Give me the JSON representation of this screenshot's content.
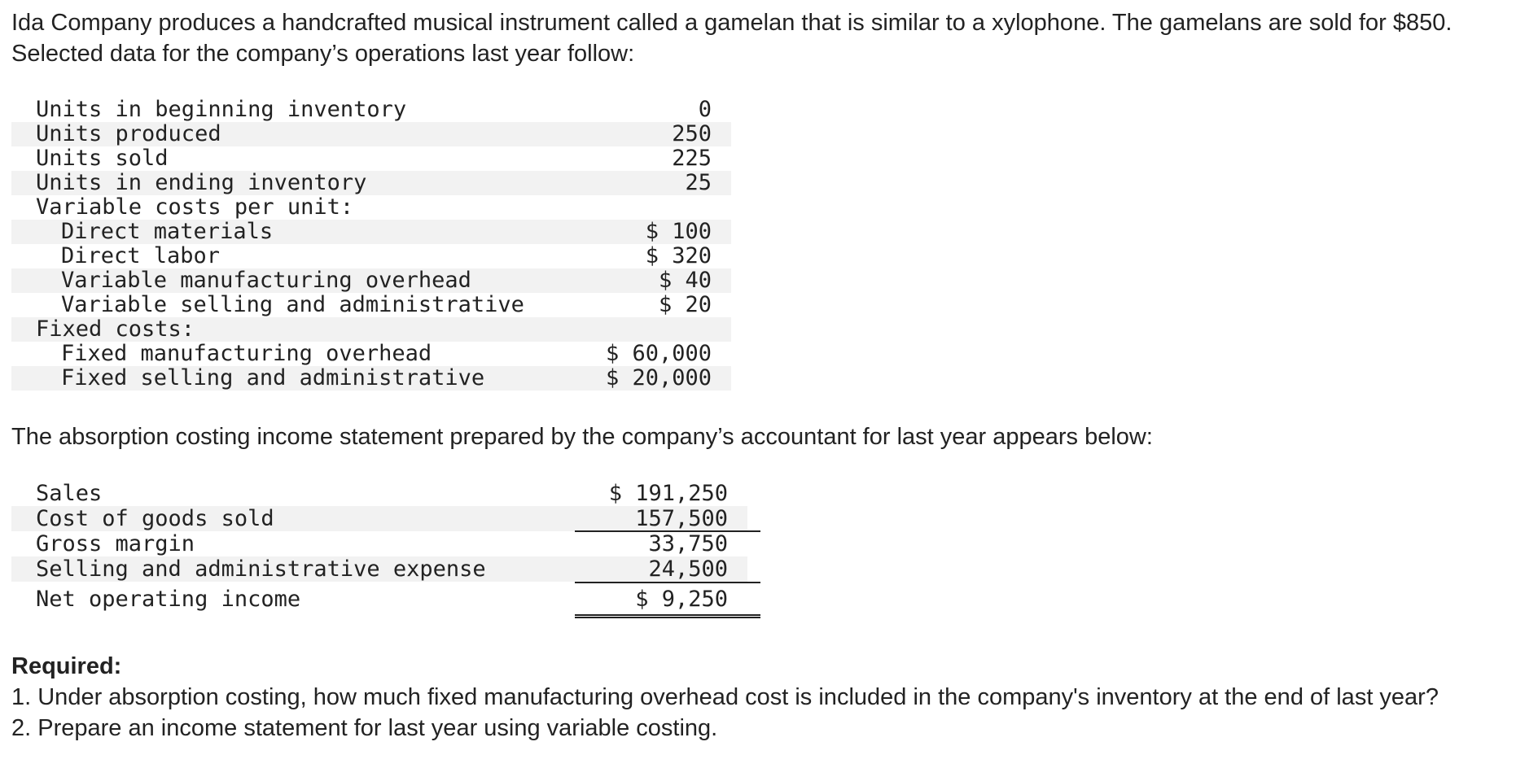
{
  "intro": "Ida Company produces a handcrafted musical instrument called a gamelan that is similar to a xylophone. The gamelans are sold for $850. Selected data for the company’s operations last year follow:",
  "data_table": [
    {
      "label": "Units in beginning inventory",
      "value": "0",
      "indent": false
    },
    {
      "label": "Units produced",
      "value": "250",
      "indent": false
    },
    {
      "label": "Units sold",
      "value": "225",
      "indent": false
    },
    {
      "label": "Units in ending inventory",
      "value": "25",
      "indent": false
    },
    {
      "label": "Variable costs per unit:",
      "value": "",
      "indent": false
    },
    {
      "label": "Direct materials",
      "value": "$ 100",
      "indent": true
    },
    {
      "label": "Direct labor",
      "value": "$ 320",
      "indent": true
    },
    {
      "label": "Variable manufacturing overhead",
      "value": "$ 40",
      "indent": true
    },
    {
      "label": "Variable selling and administrative",
      "value": "$ 20",
      "indent": true
    },
    {
      "label": "Fixed costs:",
      "value": "",
      "indent": false
    },
    {
      "label": "Fixed manufacturing overhead",
      "value": "$ 60,000",
      "indent": true
    },
    {
      "label": "Fixed selling and administrative",
      "value": "$ 20,000",
      "indent": true
    }
  ],
  "between_text": "The absorption costing income statement prepared by the company’s accountant for last year appears below:",
  "income_statement": [
    {
      "label": "Sales",
      "value": "$ 191,250"
    },
    {
      "label": "Cost of goods sold",
      "value": "157,500"
    },
    {
      "label": "Gross margin",
      "value": "33,750"
    },
    {
      "label": "Selling and administrative expense",
      "value": "24,500"
    },
    {
      "label": "Net operating income",
      "value": "$ 9,250"
    }
  ],
  "required": {
    "title": "Required:",
    "items": [
      "1. Under absorption costing, how much fixed manufacturing overhead cost is included in the company's inventory at the end of last year?",
      "2. Prepare an income statement for last year using variable costing."
    ]
  }
}
